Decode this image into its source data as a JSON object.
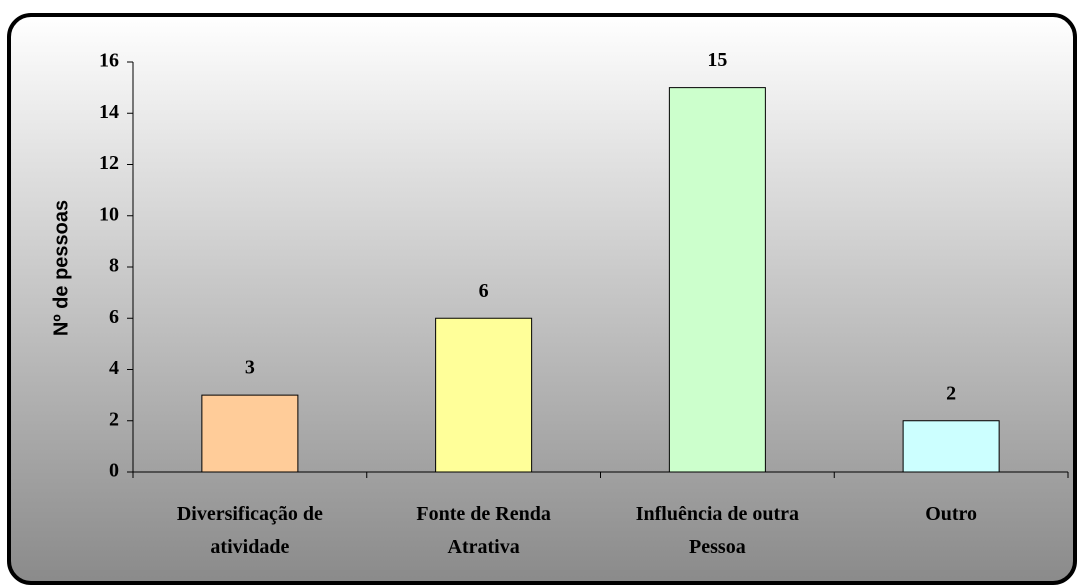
{
  "chart_data": {
    "type": "bar",
    "categories": [
      "Diversificação de atividade",
      "Fonte de Renda Atrativa",
      "Influência de outra Pessoa",
      "Outro"
    ],
    "values": [
      3,
      6,
      15,
      2
    ],
    "colors": [
      "#ffcc99",
      "#ffff99",
      "#ccffcc",
      "#ccffff"
    ],
    "ylabel": "Nº de pessoas",
    "ylim": [
      0,
      16
    ],
    "yticks": [
      0,
      2,
      4,
      6,
      8,
      10,
      12,
      14,
      16
    ]
  }
}
